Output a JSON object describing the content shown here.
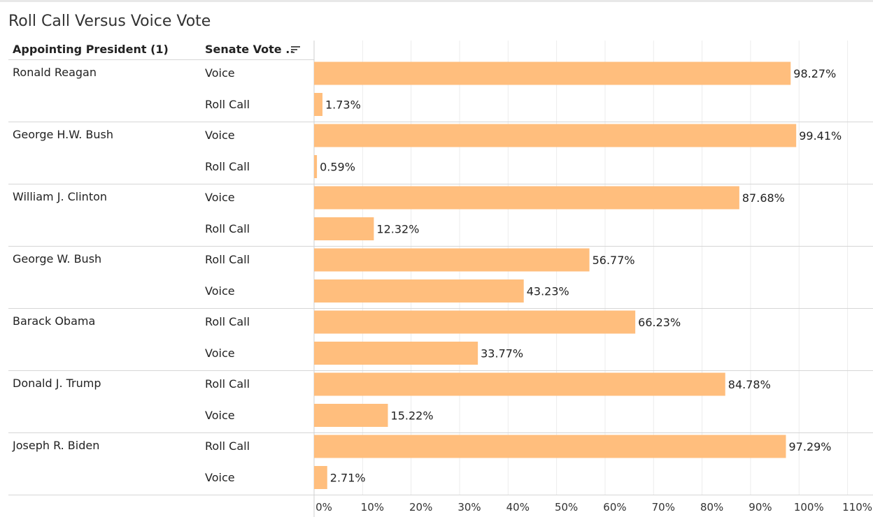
{
  "title": "Roll Call Versus Voice Vote",
  "headers": {
    "president": "Appointing President (1)",
    "vote": "Senate Vote .."
  },
  "colors": {
    "bar": "#ffbe7d",
    "grid": "#ececec",
    "divider": "#d6d6d6"
  },
  "chart_data": {
    "type": "bar",
    "orientation": "horizontal",
    "title": "Roll Call Versus Voice Vote",
    "xlabel": "",
    "ylabel": "",
    "xlim": [
      0,
      110
    ],
    "ticks": [
      0,
      10,
      20,
      30,
      40,
      50,
      60,
      70,
      80,
      90,
      100,
      110
    ],
    "tick_labels": [
      "0%",
      "10%",
      "20%",
      "30%",
      "40%",
      "50%",
      "60%",
      "70%",
      "80%",
      "90%",
      "100%",
      "110%"
    ],
    "groups": [
      {
        "president": "Ronald Reagan",
        "rows": [
          {
            "vote": "Voice",
            "value": 98.27,
            "label": "98.27%"
          },
          {
            "vote": "Roll Call",
            "value": 1.73,
            "label": "1.73%"
          }
        ]
      },
      {
        "president": "George H.W. Bush",
        "rows": [
          {
            "vote": "Voice",
            "value": 99.41,
            "label": "99.41%"
          },
          {
            "vote": "Roll Call",
            "value": 0.59,
            "label": "0.59%"
          }
        ]
      },
      {
        "president": "William J. Clinton",
        "rows": [
          {
            "vote": "Voice",
            "value": 87.68,
            "label": "87.68%"
          },
          {
            "vote": "Roll Call",
            "value": 12.32,
            "label": "12.32%"
          }
        ]
      },
      {
        "president": "George W. Bush",
        "rows": [
          {
            "vote": "Roll Call",
            "value": 56.77,
            "label": "56.77%"
          },
          {
            "vote": "Voice",
            "value": 43.23,
            "label": "43.23%"
          }
        ]
      },
      {
        "president": "Barack Obama",
        "rows": [
          {
            "vote": "Roll Call",
            "value": 66.23,
            "label": "66.23%"
          },
          {
            "vote": "Voice",
            "value": 33.77,
            "label": "33.77%"
          }
        ]
      },
      {
        "president": "Donald J. Trump",
        "rows": [
          {
            "vote": "Roll Call",
            "value": 84.78,
            "label": "84.78%"
          },
          {
            "vote": "Voice",
            "value": 15.22,
            "label": "15.22%"
          }
        ]
      },
      {
        "president": "Joseph R. Biden",
        "rows": [
          {
            "vote": "Roll Call",
            "value": 97.29,
            "label": "97.29%"
          },
          {
            "vote": "Voice",
            "value": 2.71,
            "label": "2.71%"
          }
        ]
      }
    ]
  }
}
